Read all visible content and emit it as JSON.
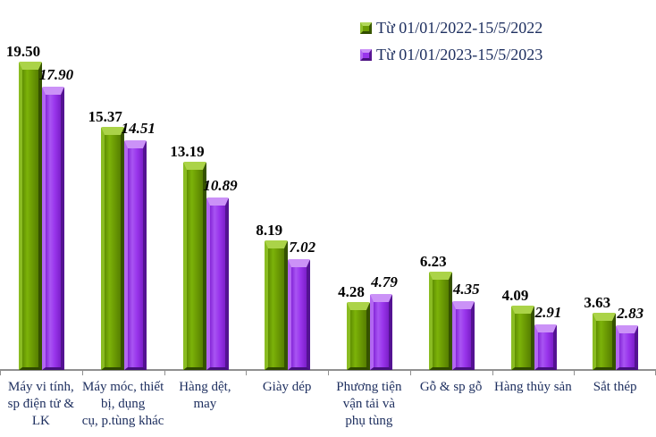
{
  "chart_data": {
    "type": "bar",
    "title": "",
    "xlabel": "",
    "ylabel": "",
    "ylim": [
      0,
      21
    ],
    "grid": false,
    "legend_position": "top-right",
    "value_label_decimals": 2,
    "axis_color": "#909090",
    "category_label_color": "#1f3060",
    "value_label_color": "#000000",
    "categories": [
      "Máy vi tính,\nsp điện tử &\nLK",
      "Máy móc, thiết\nbị, dụng\ncụ, p.tùng khác",
      "Hàng dệt,\nmay",
      "Giày dép",
      "Phương tiện\nvận tải và\nphụ tùng",
      "Gỗ & sp gỗ",
      "Hàng thủy sản",
      "Sắt thép"
    ],
    "series": [
      {
        "name": "Từ 01/01/2022-15/5/2022",
        "color": "#6c9c04",
        "values": [
          19.5,
          15.37,
          13.19,
          8.19,
          4.28,
          6.23,
          4.09,
          3.63
        ]
      },
      {
        "name": "Từ 01/01/2023-15/5/2023",
        "color": "#9935ec",
        "values": [
          17.9,
          14.51,
          10.89,
          7.02,
          4.79,
          4.35,
          2.91,
          2.83
        ]
      }
    ]
  }
}
